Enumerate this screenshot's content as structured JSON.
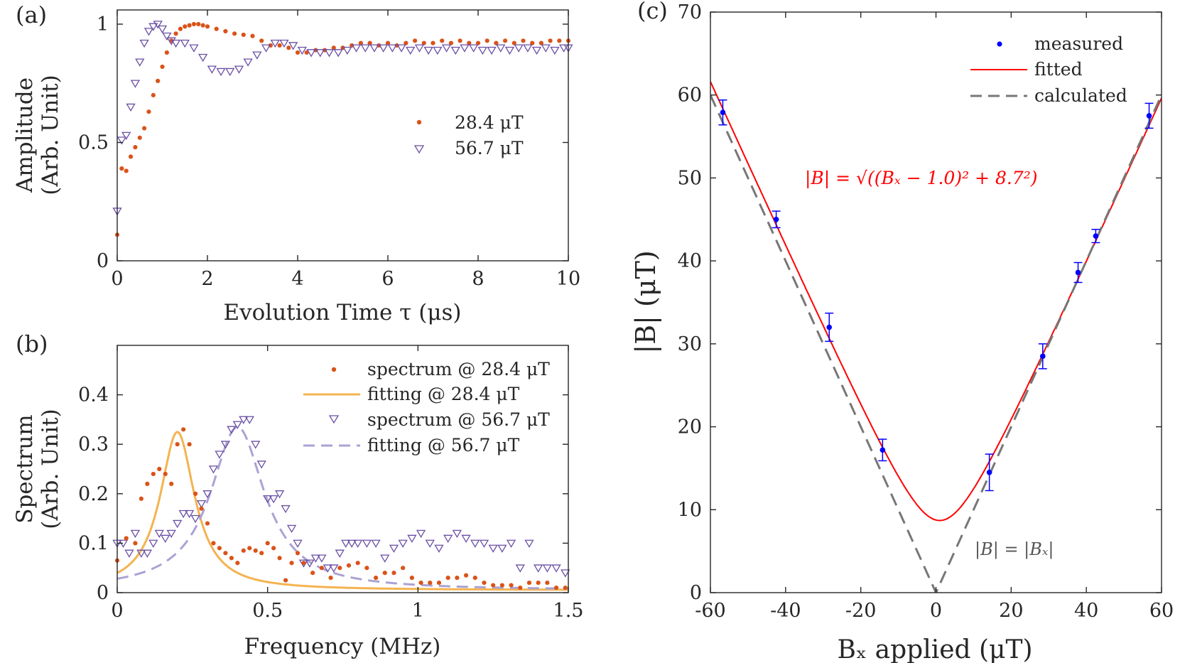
{
  "colors": {
    "orange": "#d95319",
    "purple": "#6a4fa5",
    "light_orange": "#f4b350",
    "light_purple": "#aba2d4",
    "blue": "#0000ff",
    "red": "#ff0000",
    "gray": "#777777",
    "axis": "#262626"
  },
  "chart_data": [
    {
      "panel": "(a)",
      "type": "scatter",
      "xlabel": "Evolution Time τ (μs)",
      "ylabel_line1": "Amplitude",
      "ylabel_line2": "(Arb. Unit)",
      "xlim": [
        0,
        10
      ],
      "ylim": [
        0,
        1
      ],
      "xticks": [
        0,
        2,
        4,
        6,
        8,
        10
      ],
      "yticks": [
        0,
        0.5,
        1
      ],
      "legend_position": "center-right",
      "series": [
        {
          "name": "28.4 μT",
          "marker": "dot",
          "color": "orange",
          "x": [
            0,
            0.1,
            0.2,
            0.3,
            0.4,
            0.5,
            0.6,
            0.7,
            0.8,
            0.9,
            1.0,
            1.1,
            1.2,
            1.3,
            1.4,
            1.5,
            1.6,
            1.7,
            1.8,
            1.9,
            2.0,
            2.2,
            2.4,
            2.6,
            2.8,
            3.0,
            3.2,
            3.4,
            3.6,
            3.8,
            4.0,
            4.2,
            4.4,
            4.6,
            4.8,
            5.0,
            5.2,
            5.4,
            5.6,
            5.8,
            6.0,
            6.2,
            6.4,
            6.6,
            6.8,
            7.0,
            7.2,
            7.4,
            7.6,
            7.8,
            8.0,
            8.2,
            8.4,
            8.6,
            8.8,
            9.0,
            9.2,
            9.4,
            9.6,
            9.8,
            10.0
          ],
          "y": [
            0.11,
            0.39,
            0.38,
            0.44,
            0.48,
            0.52,
            0.56,
            0.63,
            0.7,
            0.76,
            0.82,
            0.88,
            0.93,
            0.96,
            0.98,
            0.99,
            0.995,
            1.0,
            1.0,
            0.995,
            0.99,
            0.98,
            0.97,
            0.96,
            0.955,
            0.95,
            0.93,
            0.91,
            0.91,
            0.9,
            0.88,
            0.88,
            0.89,
            0.89,
            0.9,
            0.9,
            0.91,
            0.92,
            0.92,
            0.91,
            0.92,
            0.91,
            0.92,
            0.93,
            0.92,
            0.92,
            0.93,
            0.92,
            0.93,
            0.92,
            0.92,
            0.93,
            0.92,
            0.93,
            0.92,
            0.93,
            0.92,
            0.92,
            0.93,
            0.93,
            0.93
          ]
        },
        {
          "name": "56.7 μT",
          "marker": "triangle-down",
          "color": "purple",
          "x": [
            0,
            0.1,
            0.2,
            0.3,
            0.4,
            0.5,
            0.6,
            0.7,
            0.8,
            0.9,
            1.0,
            1.1,
            1.2,
            1.3,
            1.5,
            1.7,
            1.9,
            2.1,
            2.3,
            2.5,
            2.7,
            2.9,
            3.1,
            3.3,
            3.5,
            3.7,
            3.9,
            4.1,
            4.3,
            4.5,
            4.7,
            4.9,
            5.1,
            5.3,
            5.5,
            5.7,
            5.9,
            6.1,
            6.3,
            6.5,
            6.7,
            6.9,
            7.1,
            7.3,
            7.5,
            7.7,
            7.9,
            8.1,
            8.3,
            8.5,
            8.7,
            8.9,
            9.1,
            9.3,
            9.5,
            9.7,
            9.9,
            10.0
          ],
          "y": [
            0.21,
            0.51,
            0.53,
            0.65,
            0.75,
            0.84,
            0.92,
            0.97,
            0.99,
            1.0,
            0.98,
            0.95,
            0.93,
            0.92,
            0.92,
            0.9,
            0.86,
            0.81,
            0.8,
            0.8,
            0.81,
            0.84,
            0.87,
            0.9,
            0.92,
            0.92,
            0.91,
            0.89,
            0.88,
            0.88,
            0.88,
            0.88,
            0.89,
            0.9,
            0.9,
            0.9,
            0.9,
            0.9,
            0.9,
            0.89,
            0.9,
            0.89,
            0.89,
            0.9,
            0.89,
            0.9,
            0.9,
            0.89,
            0.89,
            0.9,
            0.89,
            0.9,
            0.9,
            0.89,
            0.9,
            0.89,
            0.9,
            0.9
          ]
        }
      ]
    },
    {
      "panel": "(b)",
      "type": "scatter",
      "xlabel": "Frequency (MHz)",
      "ylabel_line1": "Spectrum",
      "ylabel_line2": "(Arb. Unit)",
      "xlim": [
        0,
        1.5
      ],
      "ylim": [
        0,
        0.5
      ],
      "xticks": [
        0,
        0.5,
        1,
        1.5
      ],
      "xtick_labels": [
        "0",
        "0.5",
        "1",
        "1.5"
      ],
      "yticks": [
        0,
        0.1,
        0.2,
        0.3,
        0.4
      ],
      "legend_position": "top-right",
      "series": [
        {
          "name": "spectrum @ 28.4 μT",
          "marker": "dot",
          "color": "orange",
          "x": [
            0,
            0.03,
            0.06,
            0.08,
            0.1,
            0.12,
            0.14,
            0.16,
            0.18,
            0.2,
            0.22,
            0.24,
            0.26,
            0.28,
            0.3,
            0.32,
            0.34,
            0.36,
            0.38,
            0.4,
            0.42,
            0.44,
            0.46,
            0.48,
            0.5,
            0.52,
            0.54,
            0.56,
            0.58,
            0.6,
            0.62,
            0.65,
            0.68,
            0.71,
            0.74,
            0.77,
            0.8,
            0.83,
            0.86,
            0.89,
            0.92,
            0.95,
            0.98,
            1.01,
            1.04,
            1.07,
            1.1,
            1.13,
            1.16,
            1.19,
            1.22,
            1.25,
            1.28,
            1.31,
            1.34,
            1.37,
            1.4,
            1.43,
            1.46,
            1.49
          ],
          "y": [
            0.065,
            0.11,
            0.1,
            0.19,
            0.22,
            0.24,
            0.25,
            0.24,
            0.22,
            0.3,
            0.33,
            0.3,
            0.2,
            0.17,
            0.14,
            0.1,
            0.09,
            0.08,
            0.07,
            0.06,
            0.085,
            0.09,
            0.085,
            0.08,
            0.1,
            0.09,
            0.07,
            0.025,
            0.06,
            0.08,
            0.06,
            0.04,
            0.05,
            0.03,
            0.05,
            0.055,
            0.06,
            0.05,
            0.03,
            0.04,
            0.04,
            0.05,
            0.03,
            0.02,
            0.02,
            0.02,
            0.03,
            0.03,
            0.035,
            0.03,
            0.02,
            0.015,
            0.015,
            0.015,
            0.01,
            0.02,
            0.02,
            0.02,
            0.01,
            0.01
          ]
        },
        {
          "name": "fitting @ 28.4 μT",
          "marker": "line",
          "color": "light_orange",
          "lorentzian": {
            "center": 0.2,
            "width": 0.07,
            "amplitude": 0.32,
            "offset": 0.005
          }
        },
        {
          "name": "spectrum @ 56.7 μT",
          "marker": "triangle-down",
          "color": "purple",
          "x": [
            0,
            0.02,
            0.04,
            0.06,
            0.08,
            0.1,
            0.12,
            0.14,
            0.16,
            0.18,
            0.2,
            0.22,
            0.24,
            0.26,
            0.28,
            0.3,
            0.32,
            0.34,
            0.36,
            0.38,
            0.4,
            0.42,
            0.44,
            0.46,
            0.48,
            0.5,
            0.52,
            0.54,
            0.56,
            0.58,
            0.6,
            0.62,
            0.64,
            0.66,
            0.68,
            0.7,
            0.72,
            0.74,
            0.76,
            0.78,
            0.8,
            0.83,
            0.86,
            0.89,
            0.92,
            0.95,
            0.98,
            1.01,
            1.04,
            1.07,
            1.1,
            1.13,
            1.16,
            1.19,
            1.22,
            1.25,
            1.28,
            1.31,
            1.34,
            1.37,
            1.4,
            1.43,
            1.46,
            1.49
          ],
          "y": [
            0.1,
            0.1,
            0.08,
            0.12,
            0.08,
            0.08,
            0.1,
            0.12,
            0.11,
            0.12,
            0.14,
            0.16,
            0.16,
            0.15,
            0.18,
            0.2,
            0.25,
            0.28,
            0.3,
            0.33,
            0.34,
            0.35,
            0.35,
            0.3,
            0.26,
            0.19,
            0.19,
            0.2,
            0.17,
            0.13,
            0.1,
            0.06,
            0.06,
            0.07,
            0.07,
            0.05,
            0.05,
            0.08,
            0.1,
            0.1,
            0.1,
            0.1,
            0.1,
            0.07,
            0.09,
            0.1,
            0.11,
            0.12,
            0.1,
            0.09,
            0.11,
            0.12,
            0.11,
            0.1,
            0.1,
            0.09,
            0.09,
            0.1,
            0.05,
            0.1,
            0.05,
            0.05,
            0.05,
            0.04
          ]
        },
        {
          "name": "fitting @ 56.7 μT",
          "marker": "dashed-line",
          "color": "light_purple",
          "lorentzian": {
            "center": 0.4,
            "width": 0.11,
            "amplitude": 0.33,
            "offset": 0.005
          }
        }
      ]
    },
    {
      "panel": "(c)",
      "type": "scatter",
      "xlabel": "Bₓ applied (μT)",
      "ylabel": "|B| (μT)",
      "xlim": [
        -60,
        60
      ],
      "ylim": [
        0,
        70
      ],
      "xticks": [
        -60,
        -40,
        -20,
        0,
        20,
        40,
        60
      ],
      "yticks": [
        0,
        10,
        20,
        30,
        40,
        50,
        60,
        70
      ],
      "legend_position": "top-right",
      "fit_formula": "|B| = √((Bₓ − 1.0)² + 8.7²)",
      "calc_label": "|B| = |Bₓ|",
      "series": [
        {
          "name": "measured",
          "marker": "dot-errorbar",
          "color": "blue",
          "x": [
            -56.7,
            -42.5,
            -28.4,
            -14.2,
            14.2,
            28.4,
            37.8,
            42.5,
            56.7
          ],
          "y": [
            57.9,
            45.0,
            32.0,
            17.2,
            14.5,
            28.5,
            38.6,
            43.0,
            57.5
          ],
          "err": [
            1.5,
            1.0,
            1.7,
            1.3,
            2.2,
            1.5,
            1.2,
            0.8,
            1.5
          ]
        },
        {
          "name": "fitted",
          "marker": "line",
          "color": "red",
          "model": {
            "x0": 1.0,
            "b0": 8.7
          }
        },
        {
          "name": "calculated",
          "marker": "dashed-line",
          "color": "gray",
          "model": {
            "x0": 0,
            "b0": 0
          }
        }
      ]
    }
  ]
}
